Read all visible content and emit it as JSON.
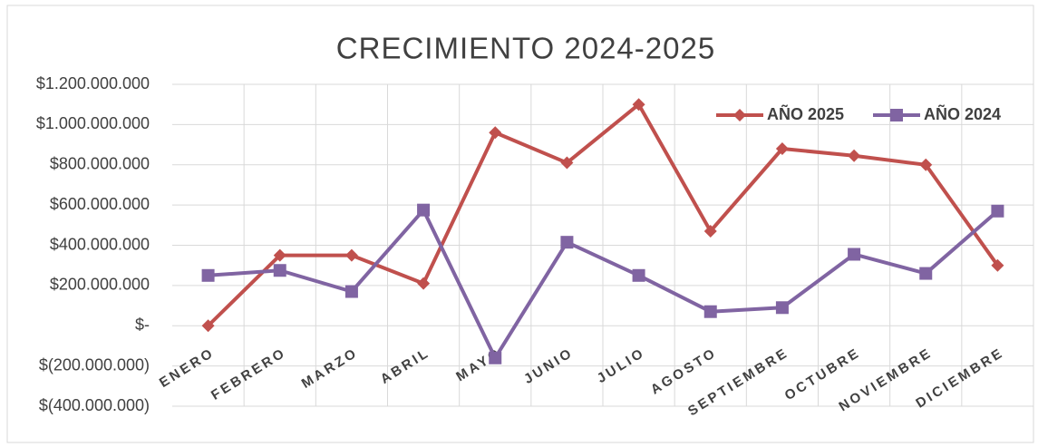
{
  "chart_data": {
    "type": "line",
    "title": "CRECIMIENTO 2024-2025",
    "categories": [
      "ENERO",
      "FEBRERO",
      "MARZO",
      "ABRIL",
      "MAYO",
      "JUNIO",
      "JULIO",
      "AGOSTO",
      "SEPTIEMBRE",
      "OCTUBRE",
      "NOVIEMBRE",
      "DICIEMBRE"
    ],
    "series": [
      {
        "name": "AÑO 2025",
        "color": "#c0504d",
        "marker": "diamond",
        "values": [
          0,
          350000000,
          350000000,
          210000000,
          960000000,
          810000000,
          1100000000,
          470000000,
          880000000,
          845000000,
          800000000,
          300000000
        ]
      },
      {
        "name": "AÑO 2024",
        "color": "#8064a2",
        "marker": "square",
        "values": [
          250000000,
          275000000,
          170000000,
          575000000,
          -160000000,
          415000000,
          250000000,
          70000000,
          90000000,
          355000000,
          260000000,
          570000000
        ]
      }
    ],
    "ylim": [
      -400000000,
      1200000000
    ],
    "yticks": [
      {
        "value": -400000000,
        "label": "$(400.000.000)"
      },
      {
        "value": -200000000,
        "label": "$(200.000.000)"
      },
      {
        "value": 0,
        "label": "$-"
      },
      {
        "value": 200000000,
        "label": "$200.000.000"
      },
      {
        "value": 400000000,
        "label": "$400.000.000"
      },
      {
        "value": 600000000,
        "label": "$600.000.000"
      },
      {
        "value": 800000000,
        "label": "$800.000.000"
      },
      {
        "value": 1000000000,
        "label": "$1.000.000.000"
      },
      {
        "value": 1200000000,
        "label": "$1.200.000.000"
      }
    ],
    "grid": true,
    "legend": "top-right"
  }
}
